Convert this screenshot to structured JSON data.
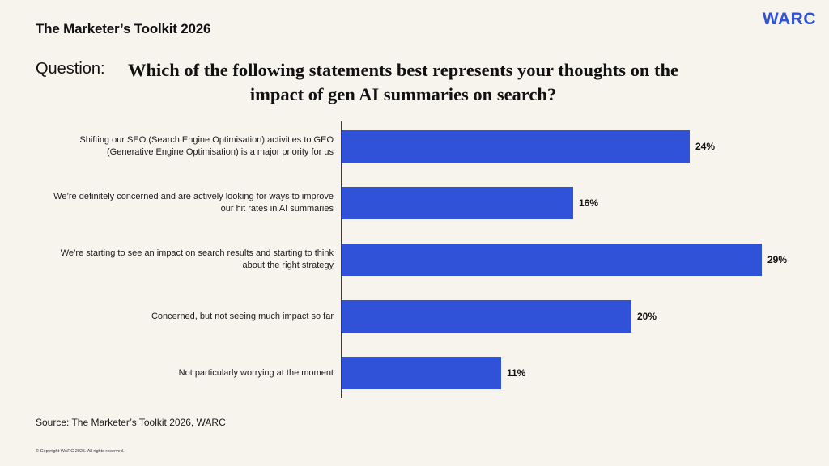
{
  "header": {
    "report_title": "The Marketer’s Toolkit 2026",
    "brand": "WARC"
  },
  "question": {
    "prefix": "Question:",
    "text": "Which of the following statements best represents your thoughts on the impact of gen AI summaries on search?"
  },
  "chart_data": {
    "type": "bar",
    "orientation": "horizontal",
    "categories": [
      "Shifting our SEO (Search Engine Optimisation) activities to GEO (Generative Engine Optimisation) is a major priority for us",
      "We’re definitely concerned and are actively looking for ways to improve our hit rates in AI summaries",
      "We’re starting to see an impact on search results and starting to think about the right strategy",
      "Concerned, but not seeing much impact so far",
      "Not particularly worrying at the moment"
    ],
    "values": [
      24,
      16,
      29,
      20,
      11
    ],
    "value_labels": [
      "24%",
      "16%",
      "29%",
      "20%",
      "11%"
    ],
    "xlim": [
      0,
      29
    ],
    "grid": false,
    "legend": "none",
    "bar_color": "#2f52d9"
  },
  "footer": {
    "source": "Source: The Marketer’s Toolkit 2026, WARC",
    "copyright": "© Copyright WARC 2025. All rights reserved."
  },
  "colors": {
    "background": "#f7f4ee",
    "brand": "#2f52d9",
    "text": "#111111"
  }
}
